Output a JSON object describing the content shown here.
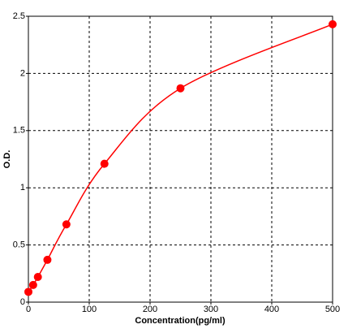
{
  "chart_data": {
    "type": "scatter",
    "x_label": "Concentration(pg/ml)",
    "y_label": "O.D.",
    "x": [
      0,
      7.8,
      15.6,
      31.25,
      62.5,
      125,
      250,
      500
    ],
    "series": [
      {
        "color": "#ff0000",
        "values": [
          0.09,
          0.15,
          0.22,
          0.37,
          0.68,
          1.21,
          1.87,
          2.43
        ]
      }
    ],
    "xlim": [
      0,
      500
    ],
    "ylim": [
      0,
      2.5
    ],
    "xticks": [
      0,
      100,
      200,
      300,
      400,
      500
    ],
    "yticks": [
      0,
      0.5,
      1,
      1.5,
      2,
      2.5
    ],
    "grid": true
  }
}
